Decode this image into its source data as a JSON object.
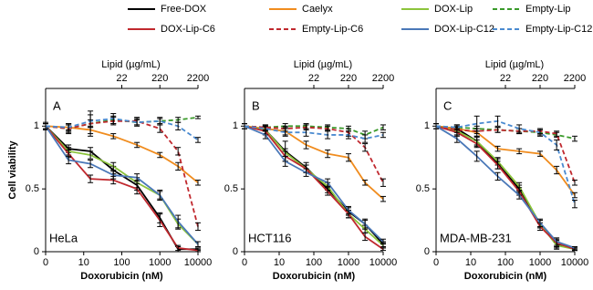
{
  "chart_data": [
    {
      "type": "line",
      "label": "A",
      "cell_line": "HeLa",
      "ylabel": "Cell viability",
      "xlabel": "Doxorubicin (nM)",
      "x2label": "Lipid (µg/mL)",
      "log_x": true,
      "x": [
        0,
        4,
        15,
        60,
        250,
        1000,
        3000,
        10000
      ],
      "xlim": [
        0,
        10000
      ],
      "xticks": [
        0,
        10,
        100,
        1000,
        10000
      ],
      "x2lim": [
        0,
        2200
      ],
      "x2ticks": [
        22,
        220,
        2200
      ],
      "ylim": [
        0,
        1.3
      ],
      "yticks": [
        0,
        0.5,
        1
      ],
      "series": [
        {
          "name": "Free-DOX",
          "color": "#000000",
          "dashed": false,
          "values": [
            1,
            0.82,
            0.8,
            0.65,
            0.53,
            0.27,
            0.02,
            0.02
          ],
          "errors": [
            0.02,
            0.03,
            0.03,
            0.03,
            0.04,
            0.04,
            0.02,
            0.01
          ]
        },
        {
          "name": "Caelyx",
          "color": "#f08c1e",
          "dashed": false,
          "values": [
            1,
            0.99,
            0.97,
            0.92,
            0.85,
            0.77,
            0.68,
            0.55
          ],
          "errors": [
            0.02,
            0.02,
            0.03,
            0.02,
            0.02,
            0.02,
            0.03,
            0.02
          ]
        },
        {
          "name": "DOX-Lip",
          "color": "#8cc43c",
          "dashed": false,
          "values": [
            1,
            0.8,
            0.77,
            0.68,
            0.55,
            0.45,
            0.22,
            0.06
          ],
          "errors": [
            0.02,
            0.03,
            0.03,
            0.03,
            0.04,
            0.04,
            0.04,
            0.02
          ]
        },
        {
          "name": "Empty-Lip",
          "color": "#3a9a2a",
          "dashed": true,
          "values": [
            1,
            0.98,
            1.02,
            1.05,
            1.03,
            1.04,
            1.05,
            1.07
          ],
          "errors": [
            0.02,
            0.03,
            0.03,
            0.03,
            0.02,
            0.02,
            0.02,
            0.01
          ]
        },
        {
          "name": "DOX-Lip-C6",
          "color": "#c0282e",
          "dashed": false,
          "values": [
            1,
            0.78,
            0.58,
            0.57,
            0.5,
            0.25,
            0.03,
            0.01
          ],
          "errors": [
            0.02,
            0.03,
            0.03,
            0.03,
            0.04,
            0.05,
            0.02,
            0.01
          ]
        },
        {
          "name": "Empty-Lip-C6",
          "color": "#c0282e",
          "dashed": true,
          "values": [
            1,
            0.98,
            1.02,
            1.04,
            1.04,
            0.98,
            0.8,
            0.2
          ],
          "errors": [
            0.03,
            0.04,
            0.1,
            0.03,
            0.03,
            0.03,
            0.03,
            0.03
          ]
        },
        {
          "name": "DOX-Lip-C12",
          "color": "#4a78b8",
          "dashed": false,
          "values": [
            1,
            0.73,
            0.7,
            0.61,
            0.59,
            0.45,
            0.24,
            0.06
          ],
          "errors": [
            0.02,
            0.03,
            0.03,
            0.03,
            0.03,
            0.03,
            0.05,
            0.02
          ]
        },
        {
          "name": "Empty-Lip-C12",
          "color": "#4a8ad0",
          "dashed": true,
          "values": [
            1,
            0.99,
            1.04,
            1.06,
            1.03,
            1.04,
            1.0,
            0.89
          ],
          "errors": [
            0.02,
            0.03,
            0.05,
            0.04,
            0.03,
            0.03,
            0.03,
            0.02
          ]
        }
      ]
    },
    {
      "type": "line",
      "label": "B",
      "cell_line": "HCT116",
      "xlabel": "Doxorubicin (nM)",
      "x2label": "Lipid (µg/mL)",
      "log_x": true,
      "x": [
        0,
        4,
        15,
        60,
        250,
        1000,
        3000,
        10000
      ],
      "xlim": [
        0,
        10000
      ],
      "xticks": [
        0,
        10,
        100,
        1000,
        10000
      ],
      "x2lim": [
        0,
        2200
      ],
      "x2ticks": [
        22,
        220,
        2200
      ],
      "ylim": [
        0,
        1.3
      ],
      "yticks": [
        0,
        0.5,
        1
      ],
      "series": [
        {
          "name": "Free-DOX",
          "color": "#000000",
          "dashed": false,
          "values": [
            1,
            0.97,
            0.8,
            0.67,
            0.5,
            0.32,
            0.22,
            0.06
          ],
          "errors": [
            0.02,
            0.03,
            0.08,
            0.04,
            0.03,
            0.03,
            0.03,
            0.02
          ]
        },
        {
          "name": "Caelyx",
          "color": "#f08c1e",
          "dashed": false,
          "values": [
            1,
            0.98,
            0.96,
            0.85,
            0.78,
            0.75,
            0.55,
            0.42
          ],
          "errors": [
            0.02,
            0.02,
            0.03,
            0.03,
            0.03,
            0.03,
            0.02,
            0.02
          ]
        },
        {
          "name": "DOX-Lip",
          "color": "#8cc43c",
          "dashed": false,
          "values": [
            1,
            0.97,
            0.79,
            0.66,
            0.52,
            0.3,
            0.18,
            0.05
          ],
          "errors": [
            0.02,
            0.03,
            0.03,
            0.03,
            0.03,
            0.03,
            0.03,
            0.02
          ]
        },
        {
          "name": "Empty-Lip",
          "color": "#3a9a2a",
          "dashed": true,
          "values": [
            1,
            0.99,
            1,
            1,
            0.99,
            0.98,
            0.93,
            0.99
          ],
          "errors": [
            0.02,
            0.02,
            0.02,
            0.02,
            0.02,
            0.02,
            0.03,
            0.02
          ]
        },
        {
          "name": "DOX-Lip-C6",
          "color": "#c0282e",
          "dashed": false,
          "values": [
            1,
            0.96,
            0.76,
            0.66,
            0.48,
            0.3,
            0.12,
            0.02
          ],
          "errors": [
            0.02,
            0.03,
            0.04,
            0.03,
            0.03,
            0.03,
            0.03,
            0.01
          ]
        },
        {
          "name": "Empty-Lip-C6",
          "color": "#c0282e",
          "dashed": true,
          "values": [
            1,
            0.99,
            0.98,
            0.99,
            0.98,
            0.95,
            0.83,
            0.55
          ],
          "errors": [
            0.02,
            0.02,
            0.02,
            0.02,
            0.02,
            0.03,
            0.03,
            0.03
          ]
        },
        {
          "name": "DOX-Lip-C12",
          "color": "#4a78b8",
          "dashed": false,
          "values": [
            1,
            0.93,
            0.72,
            0.63,
            0.55,
            0.33,
            0.22,
            0.08
          ],
          "errors": [
            0.02,
            0.03,
            0.04,
            0.03,
            0.03,
            0.03,
            0.04,
            0.02
          ]
        },
        {
          "name": "Empty-Lip-C12",
          "color": "#4a8ad0",
          "dashed": true,
          "values": [
            1,
            0.98,
            0.95,
            0.95,
            0.93,
            0.93,
            0.9,
            0.93
          ],
          "errors": [
            0.02,
            0.02,
            0.03,
            0.03,
            0.03,
            0.03,
            0.03,
            0.02
          ]
        }
      ]
    },
    {
      "type": "line",
      "label": "C",
      "cell_line": "MDA-MB-231",
      "xlabel": "Doxorubicin (nM)",
      "x2label": "Lipid (µg/mL)",
      "log_x": true,
      "x": [
        0,
        4,
        15,
        60,
        250,
        1000,
        3000,
        10000
      ],
      "xlim": [
        0,
        10000
      ],
      "xticks": [
        0,
        10,
        100,
        1000,
        10000
      ],
      "x2lim": [
        0,
        2200
      ],
      "x2ticks": [
        22,
        220,
        2200
      ],
      "ylim": [
        0,
        1.3
      ],
      "yticks": [
        0,
        0.5,
        1
      ],
      "series": [
        {
          "name": "Free-DOX",
          "color": "#000000",
          "dashed": false,
          "values": [
            1,
            0.98,
            0.88,
            0.7,
            0.5,
            0.22,
            0.06,
            0.02
          ],
          "errors": [
            0.02,
            0.03,
            0.04,
            0.04,
            0.03,
            0.03,
            0.03,
            0.01
          ]
        },
        {
          "name": "Caelyx",
          "color": "#f08c1e",
          "dashed": false,
          "values": [
            1,
            0.98,
            0.95,
            0.82,
            0.8,
            0.78,
            0.65,
            0.45
          ],
          "errors": [
            0.02,
            0.02,
            0.03,
            0.02,
            0.02,
            0.02,
            0.03,
            0.02
          ]
        },
        {
          "name": "DOX-Lip",
          "color": "#8cc43c",
          "dashed": false,
          "values": [
            1,
            0.96,
            0.88,
            0.72,
            0.52,
            0.22,
            0.05,
            0.02
          ],
          "errors": [
            0.02,
            0.03,
            0.03,
            0.03,
            0.03,
            0.03,
            0.03,
            0.01
          ]
        },
        {
          "name": "Empty-Lip",
          "color": "#3a9a2a",
          "dashed": true,
          "values": [
            1,
            0.99,
            0.98,
            0.97,
            0.96,
            0.95,
            0.93,
            0.9
          ],
          "errors": [
            0.02,
            0.02,
            0.02,
            0.02,
            0.02,
            0.02,
            0.02,
            0.02
          ]
        },
        {
          "name": "DOX-Lip-C6",
          "color": "#c0282e",
          "dashed": false,
          "values": [
            1,
            0.95,
            0.86,
            0.69,
            0.48,
            0.2,
            0.07,
            0.02
          ],
          "errors": [
            0.02,
            0.03,
            0.03,
            0.03,
            0.03,
            0.03,
            0.03,
            0.01
          ]
        },
        {
          "name": "Empty-Lip-C6",
          "color": "#c0282e",
          "dashed": true,
          "values": [
            1,
            0.97,
            0.96,
            0.97,
            0.96,
            0.96,
            0.94,
            0.55
          ],
          "errors": [
            0.02,
            0.02,
            0.02,
            0.02,
            0.02,
            0.02,
            0.02,
            0.02
          ]
        },
        {
          "name": "DOX-Lip-C12",
          "color": "#4a78b8",
          "dashed": false,
          "values": [
            1,
            0.9,
            0.76,
            0.6,
            0.45,
            0.23,
            0.08,
            0.03
          ],
          "errors": [
            0.02,
            0.03,
            0.04,
            0.03,
            0.03,
            0.03,
            0.03,
            0.01
          ]
        },
        {
          "name": "Empty-Lip-C12",
          "color": "#4a8ad0",
          "dashed": true,
          "values": [
            1,
            0.99,
            1.02,
            1.04,
            0.98,
            0.95,
            0.85,
            0.38
          ],
          "errors": [
            0.02,
            0.02,
            0.06,
            0.04,
            0.03,
            0.03,
            0.04,
            0.03
          ]
        }
      ]
    }
  ]
}
